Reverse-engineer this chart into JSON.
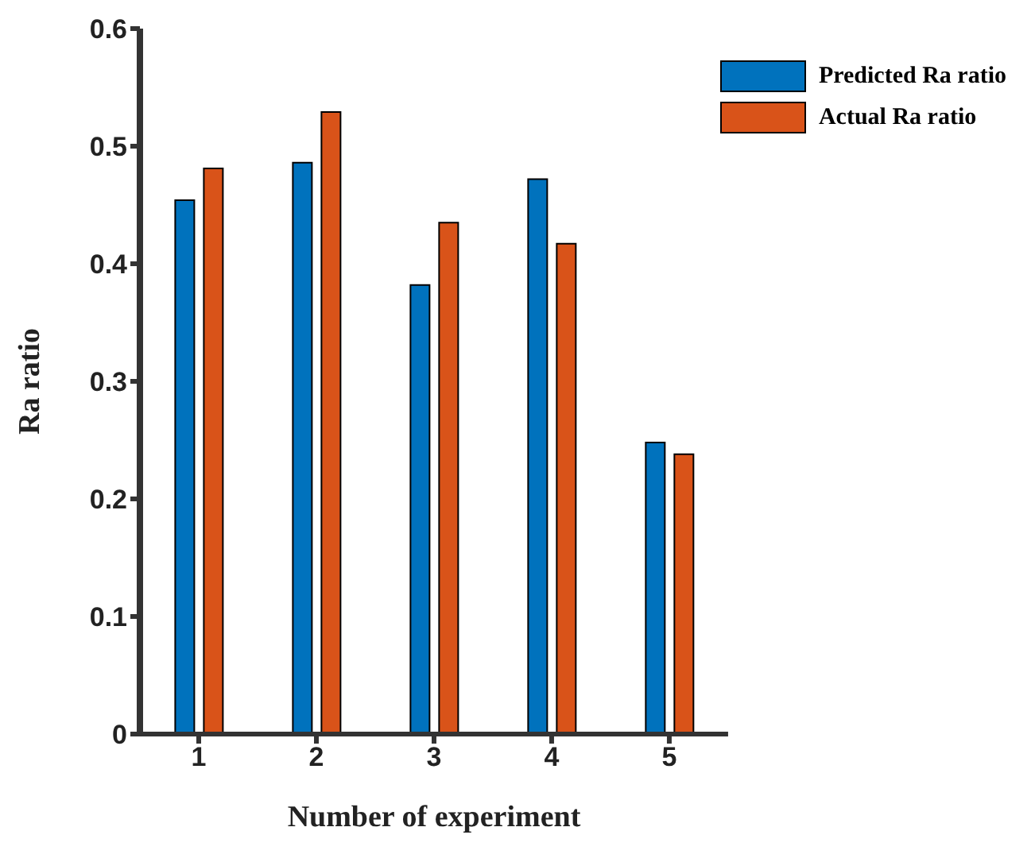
{
  "chart_data": {
    "type": "bar",
    "xlabel": "Number of experiment",
    "ylabel": "Ra ratio",
    "categories": [
      "1",
      "2",
      "3",
      "4",
      "5"
    ],
    "series": [
      {
        "name": "Predicted Ra ratio",
        "color": "#0072bd",
        "values": [
          0.454,
          0.486,
          0.382,
          0.472,
          0.248
        ]
      },
      {
        "name": "Actual Ra ratio",
        "color": "#d95319",
        "values": [
          0.481,
          0.529,
          0.435,
          0.417,
          0.238
        ]
      }
    ],
    "ylim": [
      0,
      0.6
    ],
    "yticks": [
      0,
      0.1,
      0.2,
      0.3,
      0.4,
      0.5,
      0.6
    ],
    "grid": false,
    "legend": "top right"
  }
}
